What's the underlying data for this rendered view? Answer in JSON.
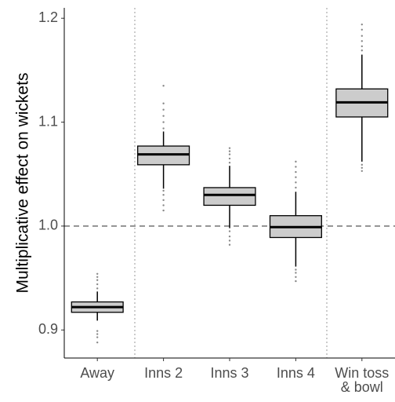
{
  "chart_data": {
    "type": "box",
    "y_label": "Multiplicative effect on wickets",
    "categories": [
      "Away",
      "Inns 2",
      "Inns 3",
      "Inns 4",
      "Win toss\n& bowl"
    ],
    "boxes": [
      {
        "whisker_low": 0.909,
        "q1": 0.917,
        "median": 0.922,
        "q3": 0.927,
        "whisker_high": 0.937,
        "outliers": [
          0.888,
          0.893,
          0.896,
          0.899,
          0.94,
          0.944,
          0.948,
          0.951,
          0.954
        ]
      },
      {
        "whisker_low": 1.036,
        "q1": 1.059,
        "median": 1.069,
        "q3": 1.077,
        "whisker_high": 1.091,
        "outliers": [
          1.015,
          1.02,
          1.025,
          1.03,
          1.034,
          1.094,
          1.1,
          1.106,
          1.112,
          1.118,
          1.135
        ]
      },
      {
        "whisker_low": 0.998,
        "q1": 1.02,
        "median": 1.03,
        "q3": 1.037,
        "whisker_high": 1.058,
        "outliers": [
          0.982,
          0.986,
          0.99,
          0.995,
          1.061,
          1.065,
          1.069,
          1.072,
          1.075
        ]
      },
      {
        "whisker_low": 0.961,
        "q1": 0.989,
        "median": 0.999,
        "q3": 1.01,
        "whisker_high": 1.033,
        "outliers": [
          0.947,
          0.951,
          0.955,
          0.958,
          1.037,
          1.042,
          1.047,
          1.052,
          1.057,
          1.062
        ]
      },
      {
        "whisker_low": 1.062,
        "q1": 1.105,
        "median": 1.119,
        "q3": 1.132,
        "whisker_high": 1.165,
        "outliers": [
          1.053,
          1.056,
          1.059,
          1.169,
          1.173,
          1.178,
          1.183,
          1.189,
          1.194
        ]
      }
    ],
    "box_color": "#cccccc",
    "outlier_color": "#888888",
    "hline": 1,
    "ylim": [
      0.873,
      1.21
    ],
    "yticks": [
      0.9,
      {
        "value": 1,
        "label": "1.0"
      },
      1.1,
      1.2
    ]
  }
}
